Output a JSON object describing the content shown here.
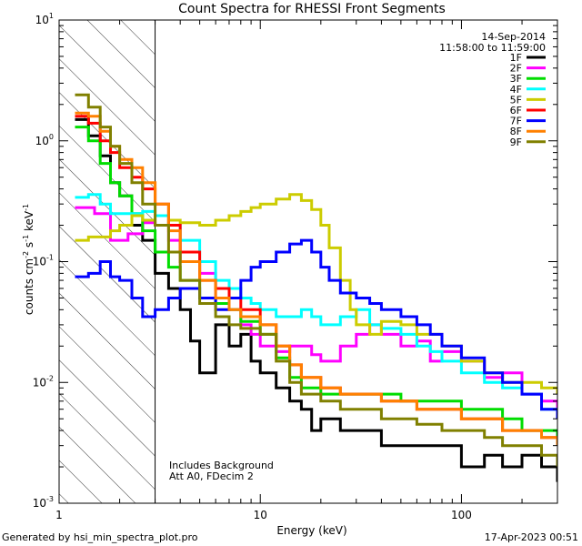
{
  "chart_data": {
    "type": "line",
    "title": "Count Spectra for RHESSI Front Segments",
    "xlabel": "Energy (keV)",
    "ylabel_parts": {
      "base": "counts cm",
      "exp1": "-2",
      "mid": " s",
      "exp2": "-1",
      "tail": " keV",
      "exp3": "-1"
    },
    "xscale": "log",
    "yscale": "log",
    "xlim": [
      1,
      300
    ],
    "ylim": [
      0.001,
      10
    ],
    "x_tick_labels": [
      {
        "v": 1,
        "label": "1"
      },
      {
        "v": 10,
        "label": "10"
      },
      {
        "v": 100,
        "label": "100"
      }
    ],
    "y_tick_labels": [
      {
        "v": 0.001,
        "base": "10",
        "exp": "-3"
      },
      {
        "v": 0.01,
        "base": "10",
        "exp": "-2"
      },
      {
        "v": 0.1,
        "base": "10",
        "exp": "-1"
      },
      {
        "v": 1,
        "base": "10",
        "exp": "0"
      },
      {
        "v": 10,
        "base": "10",
        "exp": "1"
      }
    ],
    "hatched_region_keV": [
      1,
      3
    ],
    "legend": {
      "date": "14-Sep-2014",
      "time_range": "11:58:00 to 11:59:00",
      "placement": "top-right"
    },
    "annotations": [
      "Includes Background",
      "Att A0, FDecim 2"
    ],
    "footer_left": "Generated by hsi_min_spectra_plot.pro",
    "footer_right": "17-Apr-2023 00:51",
    "series": [
      {
        "name": "1F",
        "color": "#000000",
        "points": [
          [
            1.2,
            1.5
          ],
          [
            1.4,
            1.1
          ],
          [
            1.6,
            0.75
          ],
          [
            1.8,
            0.45
          ],
          [
            2.0,
            0.35
          ],
          [
            2.3,
            0.2
          ],
          [
            2.6,
            0.15
          ],
          [
            3.0,
            0.08
          ],
          [
            3.5,
            0.06
          ],
          [
            4.0,
            0.04
          ],
          [
            4.5,
            0.022
          ],
          [
            5.0,
            0.012
          ],
          [
            6,
            0.03
          ],
          [
            7,
            0.02
          ],
          [
            8,
            0.025
          ],
          [
            9,
            0.015
          ],
          [
            10,
            0.012
          ],
          [
            12,
            0.009
          ],
          [
            14,
            0.007
          ],
          [
            16,
            0.006
          ],
          [
            18,
            0.004
          ],
          [
            20,
            0.005
          ],
          [
            25,
            0.004
          ],
          [
            30,
            0.004
          ],
          [
            40,
            0.003
          ],
          [
            50,
            0.003
          ],
          [
            60,
            0.003
          ],
          [
            80,
            0.003
          ],
          [
            100,
            0.002
          ],
          [
            130,
            0.0025
          ],
          [
            160,
            0.002
          ],
          [
            200,
            0.0025
          ],
          [
            250,
            0.002
          ],
          [
            300,
            0.0015
          ]
        ]
      },
      {
        "name": "2F",
        "color": "#ff00ff",
        "points": [
          [
            1.2,
            0.28
          ],
          [
            1.5,
            0.25
          ],
          [
            1.8,
            0.15
          ],
          [
            2.2,
            0.17
          ],
          [
            2.6,
            0.21
          ],
          [
            3.0,
            0.2
          ],
          [
            3.5,
            0.15
          ],
          [
            4.0,
            0.1
          ],
          [
            5,
            0.08
          ],
          [
            6,
            0.05
          ],
          [
            7,
            0.04
          ],
          [
            8,
            0.03
          ],
          [
            9,
            0.025
          ],
          [
            10,
            0.02
          ],
          [
            12,
            0.018
          ],
          [
            14,
            0.02
          ],
          [
            16,
            0.02
          ],
          [
            18,
            0.017
          ],
          [
            20,
            0.015
          ],
          [
            25,
            0.02
          ],
          [
            30,
            0.025
          ],
          [
            35,
            0.03
          ],
          [
            40,
            0.025
          ],
          [
            50,
            0.02
          ],
          [
            60,
            0.022
          ],
          [
            70,
            0.015
          ],
          [
            80,
            0.018
          ],
          [
            100,
            0.015
          ],
          [
            130,
            0.011
          ],
          [
            160,
            0.012
          ],
          [
            200,
            0.008
          ],
          [
            250,
            0.007
          ],
          [
            300,
            0.006
          ]
        ]
      },
      {
        "name": "3F",
        "color": "#00dd00",
        "points": [
          [
            1.2,
            1.3
          ],
          [
            1.4,
            1.0
          ],
          [
            1.6,
            0.65
          ],
          [
            1.8,
            0.45
          ],
          [
            2.0,
            0.35
          ],
          [
            2.3,
            0.25
          ],
          [
            2.6,
            0.18
          ],
          [
            3.0,
            0.12
          ],
          [
            3.5,
            0.09
          ],
          [
            4.0,
            0.07
          ],
          [
            5,
            0.05
          ],
          [
            6,
            0.045
          ],
          [
            7,
            0.04
          ],
          [
            8,
            0.032
          ],
          [
            10,
            0.025
          ],
          [
            12,
            0.016
          ],
          [
            14,
            0.011
          ],
          [
            16,
            0.009
          ],
          [
            20,
            0.008
          ],
          [
            25,
            0.008
          ],
          [
            30,
            0.008
          ],
          [
            40,
            0.008
          ],
          [
            50,
            0.007
          ],
          [
            60,
            0.007
          ],
          [
            80,
            0.007
          ],
          [
            100,
            0.006
          ],
          [
            130,
            0.006
          ],
          [
            160,
            0.005
          ],
          [
            200,
            0.004
          ],
          [
            250,
            0.004
          ],
          [
            300,
            0.0035
          ]
        ]
      },
      {
        "name": "4F",
        "color": "#00ffff",
        "points": [
          [
            1.2,
            0.34
          ],
          [
            1.4,
            0.36
          ],
          [
            1.6,
            0.3
          ],
          [
            1.8,
            0.25
          ],
          [
            2.0,
            0.25
          ],
          [
            2.3,
            0.25
          ],
          [
            2.6,
            0.26
          ],
          [
            3.0,
            0.24
          ],
          [
            3.5,
            0.2
          ],
          [
            4.0,
            0.15
          ],
          [
            5,
            0.1
          ],
          [
            6,
            0.07
          ],
          [
            7,
            0.06
          ],
          [
            8,
            0.05
          ],
          [
            9,
            0.045
          ],
          [
            10,
            0.04
          ],
          [
            12,
            0.035
          ],
          [
            14,
            0.035
          ],
          [
            16,
            0.04
          ],
          [
            18,
            0.035
          ],
          [
            20,
            0.03
          ],
          [
            25,
            0.035
          ],
          [
            30,
            0.04
          ],
          [
            35,
            0.03
          ],
          [
            40,
            0.028
          ],
          [
            50,
            0.025
          ],
          [
            60,
            0.02
          ],
          [
            70,
            0.018
          ],
          [
            80,
            0.015
          ],
          [
            100,
            0.012
          ],
          [
            130,
            0.01
          ],
          [
            160,
            0.009
          ],
          [
            200,
            0.008
          ],
          [
            250,
            0.006
          ],
          [
            300,
            0.005
          ]
        ]
      },
      {
        "name": "5F",
        "color": "#cccc00",
        "points": [
          [
            1.2,
            0.15
          ],
          [
            1.4,
            0.16
          ],
          [
            1.6,
            0.16
          ],
          [
            1.8,
            0.18
          ],
          [
            2.0,
            0.2
          ],
          [
            2.3,
            0.24
          ],
          [
            2.6,
            0.22
          ],
          [
            3.0,
            0.2
          ],
          [
            3.5,
            0.22
          ],
          [
            4.0,
            0.21
          ],
          [
            5,
            0.2
          ],
          [
            6,
            0.22
          ],
          [
            7,
            0.24
          ],
          [
            8,
            0.26
          ],
          [
            9,
            0.28
          ],
          [
            10,
            0.3
          ],
          [
            12,
            0.33
          ],
          [
            14,
            0.36
          ],
          [
            16,
            0.32
          ],
          [
            18,
            0.27
          ],
          [
            20,
            0.2
          ],
          [
            22,
            0.13
          ],
          [
            25,
            0.07
          ],
          [
            28,
            0.04
          ],
          [
            30,
            0.03
          ],
          [
            35,
            0.025
          ],
          [
            40,
            0.032
          ],
          [
            50,
            0.03
          ],
          [
            60,
            0.025
          ],
          [
            80,
            0.02
          ],
          [
            100,
            0.015
          ],
          [
            130,
            0.012
          ],
          [
            160,
            0.01
          ],
          [
            200,
            0.01
          ],
          [
            250,
            0.009
          ],
          [
            300,
            0.008
          ]
        ]
      },
      {
        "name": "6F",
        "color": "#ff0000",
        "points": [
          [
            1.2,
            1.6
          ],
          [
            1.4,
            1.4
          ],
          [
            1.6,
            1.0
          ],
          [
            1.8,
            0.8
          ],
          [
            2.0,
            0.6
          ],
          [
            2.3,
            0.5
          ],
          [
            2.6,
            0.4
          ],
          [
            3.0,
            0.3
          ],
          [
            3.5,
            0.2
          ],
          [
            4.0,
            0.12
          ],
          [
            5,
            0.07
          ],
          [
            6,
            0.06
          ],
          [
            7,
            0.05
          ],
          [
            8,
            0.04
          ],
          [
            10,
            0.03
          ],
          [
            12,
            0.02
          ],
          [
            14,
            0.014
          ],
          [
            16,
            0.011
          ],
          [
            20,
            0.009
          ],
          [
            25,
            0.008
          ],
          [
            30,
            0.008
          ],
          [
            40,
            0.007
          ],
          [
            50,
            0.007
          ],
          [
            60,
            0.006
          ],
          [
            80,
            0.006
          ],
          [
            100,
            0.005
          ],
          [
            130,
            0.005
          ],
          [
            160,
            0.004
          ],
          [
            200,
            0.004
          ],
          [
            250,
            0.0035
          ],
          [
            300,
            0.003
          ]
        ]
      },
      {
        "name": "7F",
        "color": "#0000ff",
        "points": [
          [
            1.2,
            0.075
          ],
          [
            1.4,
            0.08
          ],
          [
            1.6,
            0.1
          ],
          [
            1.8,
            0.075
          ],
          [
            2.0,
            0.07
          ],
          [
            2.3,
            0.05
          ],
          [
            2.6,
            0.035
          ],
          [
            3.0,
            0.04
          ],
          [
            3.5,
            0.05
          ],
          [
            4.0,
            0.06
          ],
          [
            5,
            0.05
          ],
          [
            6,
            0.04
          ],
          [
            7,
            0.05
          ],
          [
            8,
            0.07
          ],
          [
            9,
            0.09
          ],
          [
            10,
            0.1
          ],
          [
            12,
            0.12
          ],
          [
            14,
            0.14
          ],
          [
            16,
            0.15
          ],
          [
            18,
            0.12
          ],
          [
            20,
            0.09
          ],
          [
            22,
            0.07
          ],
          [
            25,
            0.055
          ],
          [
            30,
            0.05
          ],
          [
            35,
            0.045
          ],
          [
            40,
            0.04
          ],
          [
            50,
            0.035
          ],
          [
            60,
            0.03
          ],
          [
            70,
            0.025
          ],
          [
            80,
            0.02
          ],
          [
            100,
            0.016
          ],
          [
            130,
            0.012
          ],
          [
            160,
            0.01
          ],
          [
            200,
            0.008
          ],
          [
            250,
            0.006
          ],
          [
            300,
            0.005
          ]
        ]
      },
      {
        "name": "8F",
        "color": "#ff8000",
        "points": [
          [
            1.2,
            1.7
          ],
          [
            1.4,
            1.6
          ],
          [
            1.6,
            1.2
          ],
          [
            1.8,
            0.9
          ],
          [
            2.0,
            0.7
          ],
          [
            2.3,
            0.6
          ],
          [
            2.6,
            0.45
          ],
          [
            3.0,
            0.3
          ],
          [
            3.5,
            0.18
          ],
          [
            4.0,
            0.1
          ],
          [
            5,
            0.07
          ],
          [
            6,
            0.05
          ],
          [
            7,
            0.04
          ],
          [
            8,
            0.035
          ],
          [
            10,
            0.03
          ],
          [
            12,
            0.02
          ],
          [
            14,
            0.014
          ],
          [
            16,
            0.011
          ],
          [
            20,
            0.009
          ],
          [
            25,
            0.008
          ],
          [
            30,
            0.008
          ],
          [
            40,
            0.007
          ],
          [
            50,
            0.007
          ],
          [
            60,
            0.006
          ],
          [
            80,
            0.006
          ],
          [
            100,
            0.005
          ],
          [
            130,
            0.005
          ],
          [
            160,
            0.004
          ],
          [
            200,
            0.004
          ],
          [
            250,
            0.0035
          ],
          [
            300,
            0.003
          ]
        ]
      },
      {
        "name": "9F",
        "color": "#808000",
        "points": [
          [
            1.2,
            2.4
          ],
          [
            1.4,
            1.9
          ],
          [
            1.6,
            1.3
          ],
          [
            1.8,
            0.9
          ],
          [
            2.0,
            0.65
          ],
          [
            2.3,
            0.45
          ],
          [
            2.6,
            0.3
          ],
          [
            3.0,
            0.2
          ],
          [
            3.5,
            0.12
          ],
          [
            4.0,
            0.07
          ],
          [
            5,
            0.045
          ],
          [
            6,
            0.035
          ],
          [
            7,
            0.03
          ],
          [
            8,
            0.028
          ],
          [
            10,
            0.025
          ],
          [
            12,
            0.015
          ],
          [
            14,
            0.01
          ],
          [
            16,
            0.008
          ],
          [
            20,
            0.007
          ],
          [
            25,
            0.006
          ],
          [
            30,
            0.006
          ],
          [
            40,
            0.005
          ],
          [
            50,
            0.005
          ],
          [
            60,
            0.0045
          ],
          [
            80,
            0.004
          ],
          [
            100,
            0.004
          ],
          [
            130,
            0.0035
          ],
          [
            160,
            0.003
          ],
          [
            200,
            0.003
          ],
          [
            250,
            0.0025
          ],
          [
            300,
            0.002
          ]
        ]
      }
    ]
  }
}
